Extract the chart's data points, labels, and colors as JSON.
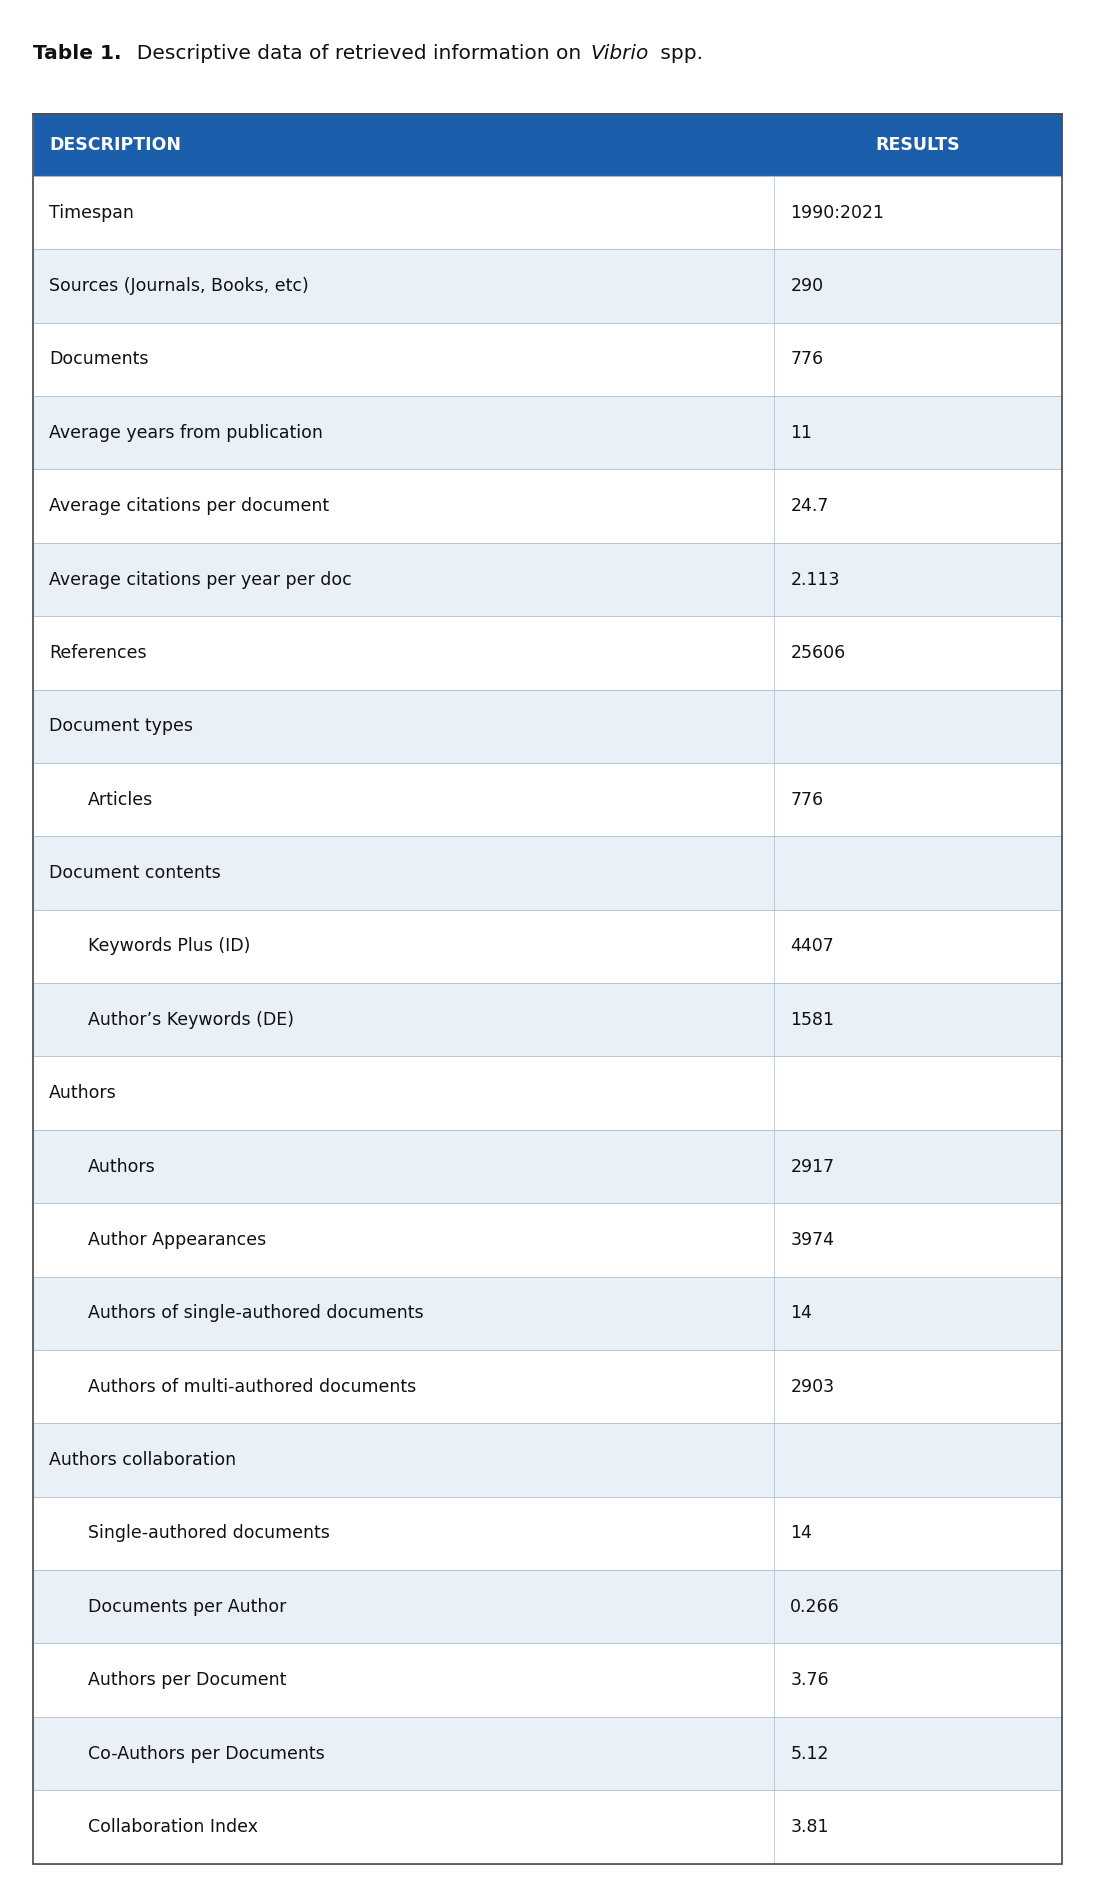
{
  "title_bold": "Table 1.",
  "title_regular": "  Descriptive data of retrieved information on ",
  "title_italic": "Vibrio",
  "title_end": " spp.",
  "header": [
    "DESCRIPTION",
    "RESULTS"
  ],
  "header_bg": "#1B5EAB",
  "header_text_color": "#FFFFFF",
  "rows": [
    {
      "desc": "Timespan",
      "result": "1990:2021",
      "indent": 0,
      "is_section": false
    },
    {
      "desc": "Sources (Journals, Books, etc)",
      "result": "290",
      "indent": 0,
      "is_section": false
    },
    {
      "desc": "Documents",
      "result": "776",
      "indent": 0,
      "is_section": false
    },
    {
      "desc": "Average years from publication",
      "result": "11",
      "indent": 0,
      "is_section": false
    },
    {
      "desc": "Average citations per document",
      "result": "24.7",
      "indent": 0,
      "is_section": false
    },
    {
      "desc": "Average citations per year per doc",
      "result": "2.113",
      "indent": 0,
      "is_section": false
    },
    {
      "desc": "References",
      "result": "25606",
      "indent": 0,
      "is_section": false
    },
    {
      "desc": "Document types",
      "result": "",
      "indent": 0,
      "is_section": true
    },
    {
      "desc": "Articles",
      "result": "776",
      "indent": 1,
      "is_section": false
    },
    {
      "desc": "Document contents",
      "result": "",
      "indent": 0,
      "is_section": true
    },
    {
      "desc": "Keywords Plus (ID)",
      "result": "4407",
      "indent": 1,
      "is_section": false
    },
    {
      "desc": "Author’s Keywords (DE)",
      "result": "1581",
      "indent": 1,
      "is_section": false
    },
    {
      "desc": "Authors",
      "result": "",
      "indent": 0,
      "is_section": true
    },
    {
      "desc": "Authors",
      "result": "2917",
      "indent": 1,
      "is_section": false
    },
    {
      "desc": "Author Appearances",
      "result": "3974",
      "indent": 1,
      "is_section": false
    },
    {
      "desc": "Authors of single-authored documents",
      "result": "14",
      "indent": 1,
      "is_section": false
    },
    {
      "desc": "Authors of multi-authored documents",
      "result": "2903",
      "indent": 1,
      "is_section": false
    },
    {
      "desc": "Authors collaboration",
      "result": "",
      "indent": 0,
      "is_section": true
    },
    {
      "desc": "Single-authored documents",
      "result": "14",
      "indent": 1,
      "is_section": false
    },
    {
      "desc": "Documents per Author",
      "result": "0.266",
      "indent": 1,
      "is_section": false
    },
    {
      "desc": "Authors per Document",
      "result": "3.76",
      "indent": 1,
      "is_section": false
    },
    {
      "desc": "Co-Authors per Documents",
      "result": "5.12",
      "indent": 1,
      "is_section": false
    },
    {
      "desc": "Collaboration Index",
      "result": "3.81",
      "indent": 1,
      "is_section": false
    }
  ],
  "col_split": 0.72,
  "row_bg_even": "#FFFFFF",
  "row_bg_odd": "#EAF0F8",
  "border_color": "#AABBD0",
  "text_color": "#111111",
  "font_size": 12.5,
  "header_font_size": 12.5,
  "title_font_size": 14.5,
  "indent_amount": 0.035
}
